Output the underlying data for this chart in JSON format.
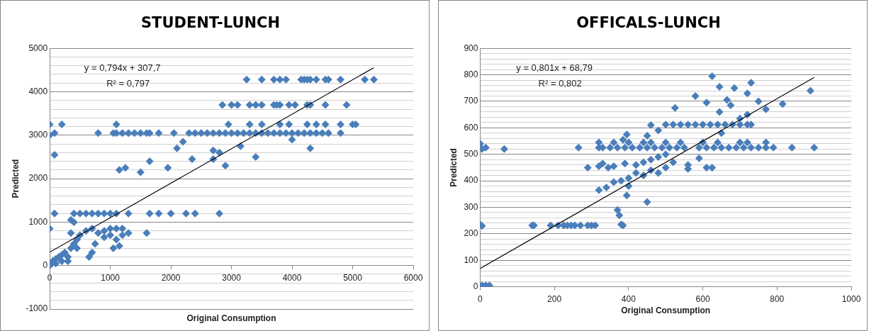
{
  "chart_data": [
    {
      "type": "scatter",
      "title": "STUDENT-LUNCH",
      "xlabel": "Original Consumption",
      "ylabel": "Predicted",
      "xlim": [
        0,
        6000
      ],
      "xticks": [
        0,
        1000,
        2000,
        3000,
        4000,
        5000,
        6000
      ],
      "ylim": [
        -1000,
        5000
      ],
      "yticks": [
        -1000,
        {
          "value": -800,
          "label": null
        },
        {
          "value": -600,
          "label": null
        },
        {
          "value": -400,
          "label": null
        },
        {
          "value": -200,
          "label": null
        },
        0,
        {
          "value": 200,
          "label": null
        },
        {
          "value": 400,
          "label": null
        },
        {
          "value": 600,
          "label": null
        },
        {
          "value": 800,
          "label": null
        },
        1000,
        {
          "value": 1200,
          "label": null
        },
        {
          "value": 1400,
          "label": null
        },
        {
          "value": 1600,
          "label": null
        },
        {
          "value": 1800,
          "label": null
        },
        2000,
        {
          "value": 2200,
          "label": null
        },
        {
          "value": 2400,
          "label": null
        },
        {
          "value": 2600,
          "label": null
        },
        {
          "value": 2800,
          "label": null
        },
        3000,
        {
          "value": 3200,
          "label": null
        },
        {
          "value": 3400,
          "label": null
        },
        {
          "value": 3600,
          "label": null
        },
        {
          "value": 3800,
          "label": null
        },
        4000,
        {
          "value": 4200,
          "label": null
        },
        {
          "value": 4400,
          "label": null
        },
        {
          "value": 4600,
          "label": null
        },
        {
          "value": 4800,
          "label": null
        },
        5000
      ],
      "grid": "y",
      "marker": "diamond",
      "annotations": [
        "y = 0,794x + 307,7",
        "R² = 0,797"
      ],
      "series": [
        {
          "type": "scatter",
          "color": "#4a7ebb",
          "x": [
            0,
            20,
            50,
            100,
            150,
            200,
            250,
            300,
            350,
            400,
            450,
            500,
            300,
            100,
            200,
            0,
            0,
            0,
            80,
            200,
            80,
            80,
            400,
            500,
            600,
            700,
            800,
            900,
            1000,
            1100,
            1300,
            1650,
            1800,
            2000,
            2250,
            2400,
            2800,
            600,
            700,
            800,
            900,
            1000,
            1100,
            1200,
            1300,
            1050,
            1150,
            650,
            700,
            750,
            900,
            1000,
            1100,
            1200,
            1600,
            350,
            400,
            350,
            450,
            800,
            1050,
            1100,
            1200,
            1300,
            1400,
            1500,
            1600,
            1650,
            1800,
            2050,
            2300,
            2400,
            2500,
            2600,
            2700,
            2800,
            2900,
            3000,
            3100,
            3200,
            3300,
            3400,
            3500,
            3600,
            3700,
            3800,
            3900,
            4000,
            4100,
            4200,
            4300,
            4400,
            4500,
            4600,
            4800,
            1100,
            1150,
            1250,
            1500,
            1650,
            1950,
            2100,
            2200,
            2350,
            2700,
            2700,
            2800,
            2900,
            3150,
            3400,
            2950,
            4000,
            4300,
            3300,
            3500,
            3800,
            3950,
            4250,
            4400,
            4550,
            4800,
            5000,
            5050,
            2850,
            3000,
            3100,
            3300,
            3400,
            3500,
            3700,
            3750,
            3800,
            3950,
            4050,
            4250,
            4300,
            4550,
            4900,
            3250,
            3500,
            3700,
            3800,
            3900,
            4150,
            4200,
            4250,
            4300,
            4400,
            4550,
            4600,
            4800,
            5200,
            5350
          ],
          "values": [
            0,
            50,
            100,
            150,
            200,
            250,
            300,
            200,
            400,
            500,
            600,
            700,
            100,
            50,
            100,
            850,
            3250,
            3000,
            3050,
            3250,
            2550,
            1200,
            1200,
            1200,
            1200,
            1200,
            1200,
            1200,
            1200,
            1200,
            1200,
            1200,
            1200,
            1200,
            1200,
            1200,
            1200,
            800,
            850,
            750,
            800,
            700,
            600,
            700,
            750,
            400,
            450,
            200,
            300,
            500,
            650,
            850,
            850,
            850,
            750,
            1050,
            1000,
            750,
            400,
            3050,
            3050,
            3050,
            3050,
            3050,
            3050,
            3050,
            3050,
            3050,
            3050,
            3050,
            3050,
            3050,
            3050,
            3050,
            3050,
            3050,
            3050,
            3050,
            3050,
            3050,
            3050,
            3050,
            3050,
            3050,
            3050,
            3050,
            3050,
            3050,
            3050,
            3050,
            3050,
            3050,
            3050,
            3050,
            3050,
            3250,
            2200,
            2250,
            2150,
            2400,
            2250,
            2700,
            2850,
            2450,
            2450,
            2650,
            2600,
            2300,
            2750,
            2500,
            3250,
            2900,
            2700,
            3250,
            3250,
            3250,
            3250,
            3250,
            3250,
            3250,
            3250,
            3250,
            3250,
            3700,
            3700,
            3700,
            3700,
            3700,
            3700,
            3700,
            3700,
            3700,
            3700,
            3700,
            3700,
            3700,
            3700,
            3700,
            4280,
            4280,
            4280,
            4280,
            4280,
            4280,
            4280,
            4280,
            4280,
            4280,
            4280,
            4280,
            4280,
            4280,
            4280
          ]
        },
        {
          "type": "line",
          "color": "#000000",
          "marker": "none",
          "x": [
            0,
            5350
          ],
          "values": [
            308,
            4556
          ]
        }
      ]
    },
    {
      "type": "scatter",
      "title": "OFFICALS-LUNCH",
      "xlabel": "Original Consumption",
      "ylabel": "Predicted",
      "xlim": [
        0,
        1000
      ],
      "xticks": [
        0,
        200,
        400,
        600,
        800,
        1000
      ],
      "ylim": [
        0,
        900
      ],
      "yticks": [
        0,
        {
          "value": 20,
          "label": null
        },
        {
          "value": 40,
          "label": null
        },
        {
          "value": 60,
          "label": null
        },
        {
          "value": 80,
          "label": null
        },
        100,
        {
          "value": 120,
          "label": null
        },
        {
          "value": 140,
          "label": null
        },
        {
          "value": 160,
          "label": null
        },
        {
          "value": 180,
          "label": null
        },
        200,
        {
          "value": 220,
          "label": null
        },
        {
          "value": 240,
          "label": null
        },
        {
          "value": 260,
          "label": null
        },
        {
          "value": 280,
          "label": null
        },
        300,
        {
          "value": 320,
          "label": null
        },
        {
          "value": 340,
          "label": null
        },
        {
          "value": 360,
          "label": null
        },
        {
          "value": 380,
          "label": null
        },
        400,
        {
          "value": 420,
          "label": null
        },
        {
          "value": 440,
          "label": null
        },
        {
          "value": 460,
          "label": null
        },
        {
          "value": 480,
          "label": null
        },
        500,
        {
          "value": 520,
          "label": null
        },
        {
          "value": 540,
          "label": null
        },
        {
          "value": 560,
          "label": null
        },
        {
          "value": 580,
          "label": null
        },
        600,
        {
          "value": 620,
          "label": null
        },
        {
          "value": 640,
          "label": null
        },
        {
          "value": 660,
          "label": null
        },
        {
          "value": 680,
          "label": null
        },
        700,
        {
          "value": 720,
          "label": null
        },
        {
          "value": 740,
          "label": null
        },
        {
          "value": 760,
          "label": null
        },
        {
          "value": 780,
          "label": null
        },
        800,
        {
          "value": 820,
          "label": null
        },
        {
          "value": 840,
          "label": null
        },
        {
          "value": 860,
          "label": null
        },
        {
          "value": 880,
          "label": null
        },
        900
      ],
      "grid": "y",
      "marker": "diamond",
      "annotations": [
        "y = 0,801x + 68,79",
        "R² = 0,802"
      ],
      "series": [
        {
          "type": "scatter",
          "color": "#4a7ebb",
          "x": [
            0,
            5,
            10,
            15,
            20,
            25,
            0,
            5,
            0,
            5,
            15,
            65,
            140,
            145,
            190,
            210,
            225,
            235,
            245,
            255,
            270,
            290,
            300,
            310,
            385,
            370,
            375,
            380,
            450,
            395,
            320,
            340,
            360,
            380,
            400,
            420,
            440,
            460,
            480,
            500,
            520,
            400,
            420,
            440,
            460,
            480,
            500,
            290,
            320,
            330,
            345,
            360,
            390,
            265,
            320,
            330,
            350,
            370,
            390,
            410,
            430,
            450,
            470,
            490,
            510,
            530,
            550,
            590,
            610,
            630,
            650,
            670,
            690,
            710,
            730,
            750,
            770,
            790,
            840,
            900,
            320,
            360,
            400,
            440,
            460,
            500,
            540,
            600,
            640,
            700,
            720,
            770,
            395,
            385,
            460,
            480,
            450,
            560,
            560,
            610,
            625,
            590,
            650,
            500,
            520,
            540,
            560,
            580,
            600,
            620,
            640,
            660,
            680,
            700,
            720,
            730,
            720,
            700,
            525,
            580,
            610,
            625,
            645,
            645,
            665,
            675,
            685,
            720,
            730,
            750,
            770,
            815,
            890
          ],
          "values": [
            0,
            5,
            0,
            5,
            0,
            5,
            235,
            230,
            540,
            520,
            525,
            520,
            232,
            232,
            232,
            232,
            232,
            232,
            232,
            232,
            232,
            232,
            232,
            232,
            232,
            290,
            270,
            235,
            320,
            345,
            365,
            375,
            395,
            400,
            410,
            430,
            420,
            440,
            430,
            450,
            470,
            380,
            460,
            470,
            480,
            490,
            500,
            450,
            455,
            465,
            450,
            455,
            465,
            525,
            525,
            525,
            525,
            525,
            525,
            525,
            525,
            525,
            525,
            525,
            525,
            525,
            525,
            525,
            525,
            525,
            525,
            525,
            525,
            525,
            525,
            525,
            525,
            525,
            525,
            525,
            545,
            545,
            545,
            545,
            545,
            545,
            545,
            545,
            545,
            545,
            545,
            545,
            575,
            555,
            610,
            590,
            570,
            460,
            445,
            450,
            450,
            485,
            580,
            612,
            612,
            612,
            612,
            612,
            612,
            612,
            612,
            612,
            612,
            612,
            612,
            612,
            650,
            635,
            675,
            720,
            695,
            795,
            755,
            660,
            705,
            685,
            750,
            730,
            770,
            700,
            670,
            690,
            740
          ]
        },
        {
          "type": "line",
          "color": "#000000",
          "marker": "none",
          "x": [
            0,
            900
          ],
          "values": [
            69,
            790
          ]
        }
      ]
    }
  ]
}
